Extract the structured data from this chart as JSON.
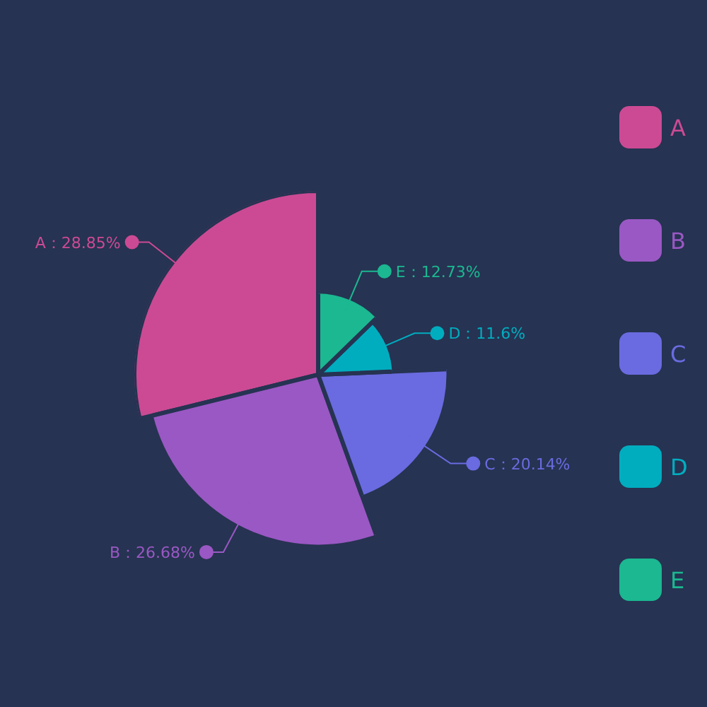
{
  "chart_data": {
    "type": "pie",
    "categories": [
      "A",
      "B",
      "C",
      "D",
      "E"
    ],
    "values": [
      28.85,
      26.68,
      20.14,
      11.6,
      12.73
    ],
    "colors": [
      "#cc4a94",
      "#9a58c4",
      "#6a6be0",
      "#00adbf",
      "#1bb891"
    ],
    "value_labels": [
      "A：28.85%",
      "B：26.68%",
      "C：20.14%",
      "D：11.6%",
      "E：12.73%"
    ],
    "legend": "right"
  }
}
